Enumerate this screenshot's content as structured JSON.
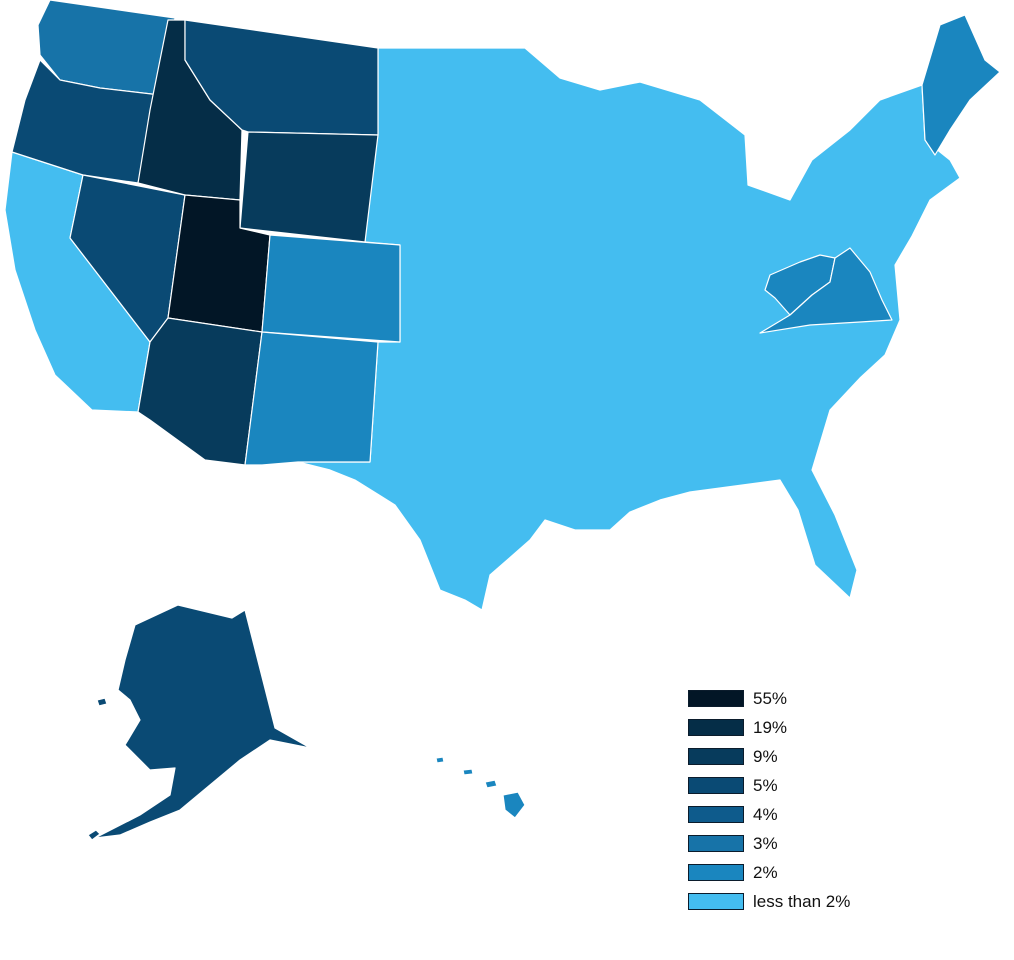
{
  "colors": {
    "c55": "#021626",
    "c19": "#052d47",
    "c9": "#073b5c",
    "c5": "#0a4a74",
    "c4": "#0e5b8c",
    "c3": "#1773a8",
    "c2": "#1a86bf",
    "lt2": "#44bdf0"
  },
  "legend": [
    {
      "label": "55%",
      "color": "#021626"
    },
    {
      "label": "19%",
      "color": "#052d47"
    },
    {
      "label": "9%",
      "color": "#073b5c"
    },
    {
      "label": "5%",
      "color": "#0a4a74"
    },
    {
      "label": "4%",
      "color": "#0e5b8c"
    },
    {
      "label": "3%",
      "color": "#1773a8"
    },
    {
      "label": "2%",
      "color": "#1a86bf"
    },
    {
      "label": "less than 2%",
      "color": "#44bdf0"
    }
  ],
  "regions": [
    {
      "name": "utah",
      "category": "55%"
    },
    {
      "name": "idaho",
      "category": "19%"
    },
    {
      "name": "wyoming",
      "category": "9%"
    },
    {
      "name": "arizona",
      "category": "9%"
    },
    {
      "name": "nevada",
      "category": "5%"
    },
    {
      "name": "oregon",
      "category": "5%"
    },
    {
      "name": "montana",
      "category": "5%"
    },
    {
      "name": "alaska",
      "category": "5%"
    },
    {
      "name": "washington",
      "category": "3%"
    },
    {
      "name": "colorado",
      "category": "2%"
    },
    {
      "name": "new-mexico",
      "category": "2%"
    },
    {
      "name": "hawaii",
      "category": "2%"
    },
    {
      "name": "virginia",
      "category": "2%"
    },
    {
      "name": "west-virginia",
      "category": "2%"
    },
    {
      "name": "maine",
      "category": "2%"
    },
    {
      "name": "other-states",
      "category": "less than 2%"
    }
  ]
}
